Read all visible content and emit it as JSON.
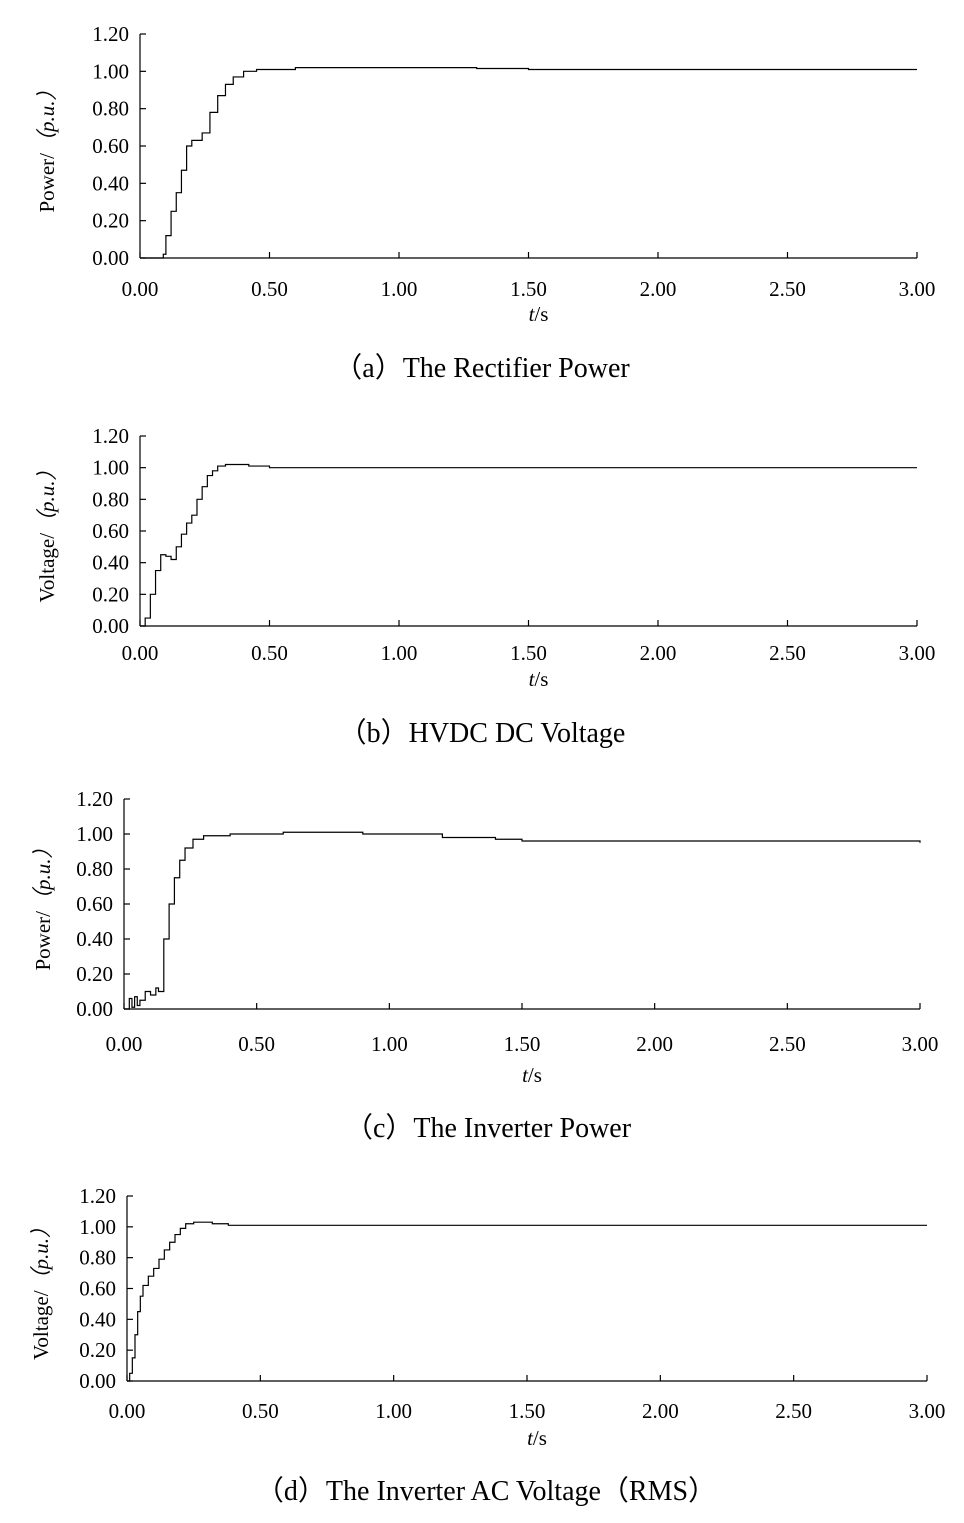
{
  "chart_data": [
    {
      "type": "line",
      "caption": "（a）The Rectifier Power",
      "ylabel_main": "Power/",
      "ylabel_unit": "（p.u.）",
      "xlabel_var": "t",
      "xlabel_unit": "/s",
      "xlim": [
        0,
        3
      ],
      "ylim": [
        0,
        1.2
      ],
      "xticks": [
        "0.00",
        "0.50",
        "1.00",
        "1.50",
        "2.00",
        "2.50",
        "3.00"
      ],
      "yticks": [
        "0.00",
        "0.20",
        "0.40",
        "0.60",
        "0.80",
        "1.00",
        "1.20"
      ],
      "grid": false,
      "series": [
        {
          "x": [
            0,
            0.08,
            0.09,
            0.1,
            0.12,
            0.14,
            0.16,
            0.18,
            0.2,
            0.22,
            0.24,
            0.27,
            0.3,
            0.33,
            0.36,
            0.4,
            0.45,
            0.5,
            0.6,
            0.75,
            0.9,
            1.1,
            1.3,
            1.5,
            2.0,
            2.5,
            3.0
          ],
          "y": [
            0,
            0,
            0.02,
            0.12,
            0.25,
            0.35,
            0.47,
            0.6,
            0.63,
            0.63,
            0.67,
            0.78,
            0.87,
            0.93,
            0.97,
            1.0,
            1.01,
            1.01,
            1.02,
            1.02,
            1.02,
            1.02,
            1.015,
            1.01,
            1.01,
            1.01,
            1.01
          ]
        }
      ]
    },
    {
      "type": "line",
      "caption": "（b）HVDC DC Voltage",
      "ylabel_main": "Voltage/",
      "ylabel_unit": "（p.u.）",
      "xlabel_var": "t",
      "xlabel_unit": "/s",
      "xlim": [
        0,
        3
      ],
      "ylim": [
        0,
        1.2
      ],
      "xticks": [
        "0.00",
        "0.50",
        "1.00",
        "1.50",
        "2.00",
        "2.50",
        "3.00"
      ],
      "yticks": [
        "0.00",
        "0.20",
        "0.40",
        "0.60",
        "0.80",
        "1.00",
        "1.20"
      ],
      "grid": false,
      "series": [
        {
          "x": [
            0,
            0.01,
            0.02,
            0.04,
            0.06,
            0.08,
            0.1,
            0.12,
            0.14,
            0.16,
            0.18,
            0.2,
            0.22,
            0.24,
            0.26,
            0.28,
            0.3,
            0.33,
            0.37,
            0.42,
            0.5,
            0.7,
            1.0,
            1.5,
            2.0,
            2.5,
            3.0
          ],
          "y": [
            0,
            0.0,
            0.05,
            0.2,
            0.35,
            0.45,
            0.44,
            0.42,
            0.5,
            0.58,
            0.65,
            0.7,
            0.8,
            0.88,
            0.95,
            0.98,
            1.01,
            1.02,
            1.02,
            1.01,
            1.0,
            1.0,
            1.0,
            1.0,
            1.0,
            1.0,
            1.0
          ]
        }
      ]
    },
    {
      "type": "line",
      "caption": "（c）The Inverter Power",
      "ylabel_main": "Power/",
      "ylabel_unit": "（p.u.）",
      "xlabel_var": "t",
      "xlabel_unit": "/s",
      "xlim": [
        0,
        3
      ],
      "ylim": [
        0,
        1.2
      ],
      "xticks": [
        "0.00",
        "0.50",
        "1.00",
        "1.50",
        "2.00",
        "2.50",
        "3.00"
      ],
      "yticks": [
        "0.00",
        "0.20",
        "0.40",
        "0.60",
        "0.80",
        "1.00",
        "1.20"
      ],
      "grid": false,
      "series": [
        {
          "x": [
            0,
            0.02,
            0.03,
            0.04,
            0.05,
            0.06,
            0.08,
            0.1,
            0.12,
            0.13,
            0.15,
            0.17,
            0.19,
            0.21,
            0.23,
            0.26,
            0.3,
            0.4,
            0.5,
            0.6,
            0.7,
            0.8,
            0.9,
            1.0,
            1.2,
            1.4,
            1.5,
            2.0,
            2.5,
            3.0
          ],
          "y": [
            0,
            0.06,
            0.01,
            0.07,
            0.02,
            0.05,
            0.1,
            0.08,
            0.12,
            0.1,
            0.4,
            0.6,
            0.75,
            0.85,
            0.92,
            0.97,
            0.99,
            1.0,
            1.0,
            1.01,
            1.01,
            1.01,
            1.0,
            1.0,
            0.98,
            0.97,
            0.96,
            0.96,
            0.96,
            0.95
          ]
        }
      ]
    },
    {
      "type": "line",
      "caption": "（d）The Inverter AC Voltage（RMS）",
      "ylabel_main": "Voltage/",
      "ylabel_unit": "（p.u.）",
      "xlabel_var": "t",
      "xlabel_unit": "/s",
      "xlim": [
        0,
        3
      ],
      "ylim": [
        0,
        1.2
      ],
      "xticks": [
        "0.00",
        "0.50",
        "1.00",
        "1.50",
        "2.00",
        "2.50",
        "3.00"
      ],
      "yticks": [
        "0.00",
        "0.20",
        "0.40",
        "0.60",
        "0.80",
        "1.00",
        "1.20"
      ],
      "grid": false,
      "series": [
        {
          "x": [
            0,
            0.01,
            0.02,
            0.03,
            0.04,
            0.05,
            0.06,
            0.08,
            0.1,
            0.12,
            0.14,
            0.16,
            0.18,
            0.2,
            0.22,
            0.25,
            0.28,
            0.32,
            0.38,
            0.45,
            0.6,
            1.0,
            1.5,
            2.0,
            2.5,
            3.0
          ],
          "y": [
            0,
            0.05,
            0.15,
            0.3,
            0.45,
            0.55,
            0.62,
            0.68,
            0.73,
            0.79,
            0.85,
            0.9,
            0.95,
            0.99,
            1.02,
            1.03,
            1.03,
            1.02,
            1.01,
            1.01,
            1.01,
            1.01,
            1.01,
            1.01,
            1.01,
            1.01
          ]
        }
      ]
    }
  ]
}
